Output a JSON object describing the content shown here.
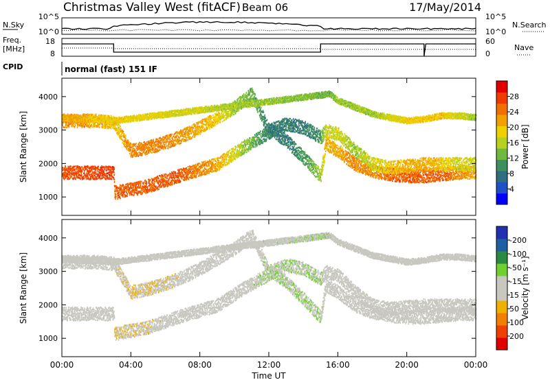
{
  "header": {
    "site": "Christmas Valley West (fitACF)",
    "beam": "Beam 06",
    "date": "17/May/2014"
  },
  "top_panels": {
    "nsky_label": "N.Sky",
    "nsky_ticks": [
      "10^5",
      "10^0"
    ],
    "nsearch_label": "N.Search",
    "nsearch_ticks": [
      "10^5",
      "10^0"
    ],
    "freq_label": "Freq.",
    "freq_unit": "[MHz]",
    "freq_ticks": [
      "18",
      "8"
    ],
    "nave_label": "Nave",
    "nave_ticks": [
      "60",
      "0"
    ],
    "cpid_label": "CPID",
    "cpid_value": "normal (fast) 151 IF"
  },
  "colors": {
    "power_scale": [
      "#0000ff",
      "#1e50c8",
      "#2e6e80",
      "#3e8e60",
      "#70b840",
      "#b8d020",
      "#f0d000",
      "#f0a000",
      "#f07000",
      "#f03a00",
      "#e00000"
    ],
    "velocity_scale": [
      "#2030b0",
      "#2060a0",
      "#2a8a40",
      "#70d030",
      "#c8c8c0",
      "#c8c8c0",
      "#f0b000",
      "#f08000",
      "#f04000",
      "#e00000"
    ]
  },
  "chart_data": [
    {
      "type": "heatmap",
      "panel": "power",
      "ylabel": "Slant Range [km]",
      "yticks": [
        "1000",
        "2000",
        "3000",
        "4000"
      ],
      "ylim": [
        450,
        4550
      ],
      "xlim": [
        0,
        24
      ],
      "colorbar_label": "Power [dB]",
      "colorbar_ticks": [
        "4",
        "8",
        "12",
        "16",
        "20",
        "24",
        "28"
      ],
      "colorbar_range": [
        0,
        30
      ],
      "bands": [
        {
          "name": "lower",
          "x": [
            0,
            3,
            3.05,
            5,
            7,
            9,
            10.5,
            11.5,
            12.2,
            13,
            14,
            15,
            15.3,
            16,
            17,
            18,
            19,
            20,
            21,
            22,
            23,
            24
          ],
          "y": [
            1750,
            1750,
            1150,
            1350,
            1700,
            2000,
            2500,
            2800,
            3000,
            2700,
            2200,
            1650,
            2600,
            2400,
            2000,
            1800,
            1700,
            1650,
            1650,
            1700,
            1750,
            1750
          ],
          "value": [
            25,
            26,
            24,
            24,
            24,
            20,
            14,
            10,
            8,
            8,
            10,
            14,
            20,
            20,
            22,
            22,
            24,
            24,
            24,
            24,
            22,
            20
          ]
        },
        {
          "name": "upper",
          "x": [
            0,
            1,
            2,
            3,
            4,
            5,
            6,
            7,
            8,
            9,
            10,
            11,
            12,
            13,
            14,
            15,
            15.3,
            16,
            17,
            18,
            19,
            20,
            21,
            22,
            23,
            24
          ],
          "y": [
            3300,
            3300,
            3300,
            3250,
            2400,
            2500,
            2650,
            2850,
            3100,
            3400,
            3700,
            4100,
            3000,
            3200,
            3100,
            2800,
            3000,
            2900,
            2400,
            2000,
            1900,
            1950,
            2000,
            2000,
            2000,
            2000
          ],
          "value": [
            22,
            21,
            20,
            18,
            22,
            22,
            22,
            21,
            20,
            18,
            14,
            12,
            8,
            8,
            8,
            10,
            16,
            16,
            14,
            16,
            18,
            20,
            20,
            18,
            16,
            16
          ]
        },
        {
          "name": "far",
          "x": [
            0,
            1,
            2,
            3,
            15.5,
            16,
            17,
            18,
            19,
            20,
            21,
            22,
            23,
            24
          ],
          "y": [
            3400,
            3350,
            3350,
            3300,
            4100,
            3900,
            3700,
            3500,
            3400,
            3300,
            3350,
            3450,
            3450,
            3400
          ],
          "value": [
            20,
            20,
            18,
            18,
            12,
            14,
            14,
            14,
            16,
            18,
            18,
            18,
            16,
            14
          ]
        }
      ]
    },
    {
      "type": "heatmap",
      "panel": "velocity",
      "ylabel": "Slant Range [km]",
      "yticks": [
        "1000",
        "2000",
        "3000",
        "4000"
      ],
      "ylim": [
        450,
        4550
      ],
      "xlim": [
        0,
        24
      ],
      "xticks": [
        "00:00",
        "04:00",
        "08:00",
        "12:00",
        "16:00",
        "20:00",
        "00:00"
      ],
      "xlabel": "Time UT",
      "colorbar_label": "Velocity [m s⁻¹]",
      "colorbar_ticks": [
        "200",
        "100",
        "50",
        "15",
        "-15",
        "-50",
        "-100",
        "-200"
      ],
      "colorbar_range": [
        -250,
        250
      ],
      "bands": [
        {
          "name": "lower",
          "x": [
            0,
            3,
            3.05,
            5,
            7,
            9,
            10.5,
            11.5,
            12.2,
            13,
            14,
            15,
            15.3,
            16,
            17,
            18,
            19,
            20,
            21,
            22,
            23,
            24
          ],
          "y": [
            1750,
            1750,
            1150,
            1350,
            1700,
            2000,
            2500,
            2800,
            3000,
            2700,
            2200,
            1650,
            2600,
            2400,
            2000,
            1800,
            1700,
            1650,
            1650,
            1700,
            1750,
            1750
          ],
          "value": [
            0,
            0,
            -40,
            -30,
            -10,
            0,
            0,
            40,
            40,
            40,
            40,
            30,
            0,
            0,
            0,
            0,
            0,
            0,
            0,
            0,
            0,
            0
          ]
        },
        {
          "name": "upper",
          "x": [
            0,
            1,
            2,
            3,
            4,
            5,
            6,
            7,
            8,
            9,
            10,
            11,
            12,
            13,
            14,
            15,
            15.3,
            16,
            17,
            18,
            19,
            20,
            21,
            22,
            23,
            24
          ],
          "y": [
            3300,
            3300,
            3300,
            3250,
            2400,
            2500,
            2650,
            2850,
            3100,
            3400,
            3700,
            4100,
            3000,
            3200,
            3100,
            2800,
            3000,
            2900,
            2400,
            2000,
            1900,
            1950,
            2000,
            2000,
            2000,
            2000
          ],
          "value": [
            0,
            0,
            0,
            -20,
            -40,
            -40,
            -30,
            -20,
            -10,
            0,
            0,
            0,
            40,
            40,
            40,
            40,
            0,
            0,
            0,
            0,
            0,
            0,
            0,
            0,
            0,
            0
          ]
        },
        {
          "name": "far",
          "x": [
            0,
            1,
            2,
            3,
            15.5,
            16,
            17,
            18,
            19,
            20,
            21,
            22,
            23,
            24
          ],
          "y": [
            3400,
            3350,
            3350,
            3300,
            4100,
            3900,
            3700,
            3500,
            3400,
            3300,
            3350,
            3450,
            3450,
            3400
          ],
          "value": [
            0,
            0,
            0,
            -20,
            40,
            0,
            0,
            0,
            0,
            0,
            0,
            0,
            0,
            0
          ]
        }
      ]
    }
  ]
}
